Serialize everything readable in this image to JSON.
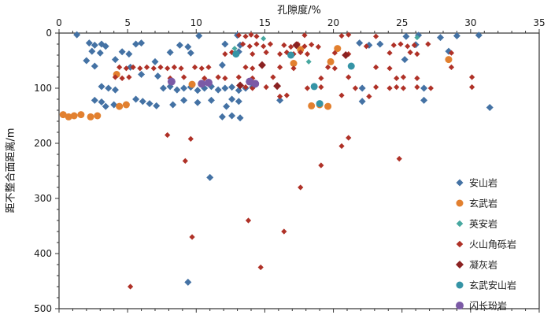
{
  "page": {
    "background": "#ffffff"
  },
  "chart_data": {
    "type": "scatter",
    "title": "",
    "xlabel": "孔隙度/%",
    "ylabel": "距不整合面距离/m",
    "xlim": [
      0,
      35
    ],
    "x_ticks": [
      0,
      5,
      10,
      15,
      20,
      25,
      30,
      35
    ],
    "ylim": [
      0,
      500
    ],
    "y_ticks": [
      0,
      100,
      200,
      300,
      400,
      500
    ],
    "y_inverted": true,
    "x_axis_position": "top",
    "grid": false,
    "legend_position": "right-center",
    "axis_color": "#333333",
    "series": [
      {
        "id": "andesite",
        "name": "安山岩",
        "marker": "diamond",
        "color": "#4472A4",
        "size": 4.5,
        "points": [
          [
            1.3,
            3
          ],
          [
            10.2,
            5
          ],
          [
            13.0,
            4
          ],
          [
            25.3,
            6
          ],
          [
            26.2,
            4
          ],
          [
            27.8,
            8
          ],
          [
            29.0,
            5
          ],
          [
            30.6,
            4
          ],
          [
            2.2,
            18
          ],
          [
            2.6,
            22
          ],
          [
            3.1,
            20
          ],
          [
            3.4,
            24
          ],
          [
            5.6,
            20
          ],
          [
            6.0,
            18
          ],
          [
            8.8,
            22
          ],
          [
            9.4,
            25
          ],
          [
            12.1,
            20
          ],
          [
            13.2,
            22
          ],
          [
            21.9,
            18
          ],
          [
            22.6,
            22
          ],
          [
            23.4,
            20
          ],
          [
            26.0,
            21
          ],
          [
            2.4,
            33
          ],
          [
            3.0,
            36
          ],
          [
            4.6,
            34
          ],
          [
            5.1,
            38
          ],
          [
            8.1,
            35
          ],
          [
            9.6,
            36
          ],
          [
            13.1,
            34
          ],
          [
            28.4,
            33
          ],
          [
            2.0,
            50
          ],
          [
            4.1,
            48
          ],
          [
            7.0,
            52
          ],
          [
            25.2,
            48
          ],
          [
            2.6,
            60
          ],
          [
            5.2,
            62
          ],
          [
            11.9,
            58
          ],
          [
            6.0,
            75
          ],
          [
            7.2,
            78
          ],
          [
            3.1,
            97
          ],
          [
            3.6,
            100
          ],
          [
            4.1,
            103
          ],
          [
            7.6,
            100
          ],
          [
            8.1,
            97
          ],
          [
            8.6,
            103
          ],
          [
            9.1,
            100
          ],
          [
            9.6,
            98
          ],
          [
            10.1,
            104
          ],
          [
            10.6,
            100
          ],
          [
            11.1,
            97
          ],
          [
            11.6,
            103
          ],
          [
            12.1,
            100
          ],
          [
            12.6,
            98
          ],
          [
            13.1,
            104
          ],
          [
            13.6,
            100
          ],
          [
            14.1,
            98
          ],
          [
            22.1,
            100
          ],
          [
            26.6,
            100
          ],
          [
            2.6,
            122
          ],
          [
            3.1,
            125
          ],
          [
            5.6,
            120
          ],
          [
            6.1,
            124
          ],
          [
            6.6,
            128
          ],
          [
            9.1,
            122
          ],
          [
            10.1,
            126
          ],
          [
            11.1,
            122
          ],
          [
            12.6,
            120
          ],
          [
            13.1,
            124
          ],
          [
            16.1,
            122
          ],
          [
            22.1,
            124
          ],
          [
            26.6,
            122
          ],
          [
            3.4,
            133
          ],
          [
            4.0,
            130
          ],
          [
            7.1,
            132
          ],
          [
            8.3,
            130
          ],
          [
            12.2,
            133
          ],
          [
            31.4,
            135
          ],
          [
            11.9,
            152
          ],
          [
            12.6,
            150
          ],
          [
            13.2,
            154
          ],
          [
            11.0,
            262
          ],
          [
            9.4,
            452
          ]
        ]
      },
      {
        "id": "basalt",
        "name": "玄武岩",
        "marker": "circle",
        "color": "#E2802F",
        "size": 4.5,
        "points": [
          [
            0.3,
            148
          ],
          [
            0.7,
            152
          ],
          [
            1.1,
            150
          ],
          [
            1.6,
            148
          ],
          [
            2.3,
            152
          ],
          [
            2.8,
            150
          ],
          [
            4.4,
            133
          ],
          [
            4.9,
            130
          ],
          [
            17.6,
            30
          ],
          [
            20.3,
            28
          ],
          [
            17.1,
            55
          ],
          [
            19.8,
            52
          ],
          [
            28.4,
            48
          ],
          [
            4.2,
            75
          ],
          [
            9.7,
            93
          ],
          [
            18.4,
            132
          ],
          [
            19.0,
            130
          ],
          [
            19.6,
            133
          ]
        ]
      },
      {
        "id": "dacite",
        "name": "英安岩",
        "marker": "diamond",
        "color": "#47A8A0",
        "size": 3.5,
        "points": [
          [
            12.8,
            28
          ],
          [
            14.9,
            10
          ],
          [
            26.1,
            8
          ],
          [
            18.2,
            52
          ]
        ]
      },
      {
        "id": "volcanic-breccia",
        "name": "火山角砾岩",
        "marker": "diamond",
        "color": "#AF3127",
        "size": 3.6,
        "points": [
          [
            13.1,
            4
          ],
          [
            13.6,
            6
          ],
          [
            14.0,
            3
          ],
          [
            14.4,
            6
          ],
          [
            17.9,
            4
          ],
          [
            20.6,
            5
          ],
          [
            21.1,
            3
          ],
          [
            23.1,
            6
          ],
          [
            13.4,
            20
          ],
          [
            13.9,
            24
          ],
          [
            14.4,
            20
          ],
          [
            14.9,
            24
          ],
          [
            15.4,
            20
          ],
          [
            16.4,
            22
          ],
          [
            16.9,
            25
          ],
          [
            17.4,
            20
          ],
          [
            17.9,
            24
          ],
          [
            18.4,
            21
          ],
          [
            18.9,
            25
          ],
          [
            22.4,
            24
          ],
          [
            24.4,
            22
          ],
          [
            24.9,
            20
          ],
          [
            25.4,
            24
          ],
          [
            25.9,
            22
          ],
          [
            26.9,
            20
          ],
          [
            12.1,
            38
          ],
          [
            12.6,
            35
          ],
          [
            14.1,
            38
          ],
          [
            15.1,
            35
          ],
          [
            16.1,
            38
          ],
          [
            16.6,
            35
          ],
          [
            17.1,
            38
          ],
          [
            17.6,
            35
          ],
          [
            18.1,
            38
          ],
          [
            20.1,
            36
          ],
          [
            21.1,
            38
          ],
          [
            24.1,
            36
          ],
          [
            25.6,
            35
          ],
          [
            26.1,
            38
          ],
          [
            28.6,
            36
          ],
          [
            4.4,
            62
          ],
          [
            4.9,
            64
          ],
          [
            5.4,
            62
          ],
          [
            5.9,
            64
          ],
          [
            6.4,
            62
          ],
          [
            6.9,
            64
          ],
          [
            7.4,
            62
          ],
          [
            7.9,
            64
          ],
          [
            8.4,
            62
          ],
          [
            8.9,
            64
          ],
          [
            9.9,
            62
          ],
          [
            10.4,
            64
          ],
          [
            10.9,
            62
          ],
          [
            13.6,
            62
          ],
          [
            14.1,
            64
          ],
          [
            16.1,
            62
          ],
          [
            17.1,
            64
          ],
          [
            19.6,
            62
          ],
          [
            20.1,
            64
          ],
          [
            23.1,
            62
          ],
          [
            24.1,
            64
          ],
          [
            28.6,
            62
          ],
          [
            4.1,
            80
          ],
          [
            4.6,
            82
          ],
          [
            5.1,
            80
          ],
          [
            8.1,
            82
          ],
          [
            9.1,
            80
          ],
          [
            10.6,
            82
          ],
          [
            11.6,
            80
          ],
          [
            12.1,
            82
          ],
          [
            13.1,
            80
          ],
          [
            14.1,
            82
          ],
          [
            15.6,
            80
          ],
          [
            19.1,
            82
          ],
          [
            21.1,
            80
          ],
          [
            24.6,
            82
          ],
          [
            25.1,
            80
          ],
          [
            26.1,
            82
          ],
          [
            30.1,
            80
          ],
          [
            13.6,
            98
          ],
          [
            14.1,
            100
          ],
          [
            15.1,
            98
          ],
          [
            18.1,
            100
          ],
          [
            19.1,
            98
          ],
          [
            21.6,
            100
          ],
          [
            23.1,
            98
          ],
          [
            24.1,
            100
          ],
          [
            24.6,
            98
          ],
          [
            25.1,
            100
          ],
          [
            26.1,
            98
          ],
          [
            27.1,
            100
          ],
          [
            30.1,
            98
          ],
          [
            16.1,
            115
          ],
          [
            16.6,
            113
          ],
          [
            20.6,
            113
          ],
          [
            22.6,
            115
          ],
          [
            7.9,
            185
          ],
          [
            9.6,
            192
          ],
          [
            21.1,
            190
          ],
          [
            20.6,
            205
          ],
          [
            9.2,
            232
          ],
          [
            24.8,
            228
          ],
          [
            19.1,
            240
          ],
          [
            17.6,
            280
          ],
          [
            13.8,
            340
          ],
          [
            16.4,
            360
          ],
          [
            9.7,
            370
          ],
          [
            14.7,
            425
          ],
          [
            5.2,
            460
          ]
        ]
      },
      {
        "id": "tuff",
        "name": "凝灰岩",
        "marker": "diamond",
        "color": "#8B2222",
        "size": 5,
        "points": [
          [
            14.8,
            58
          ],
          [
            17.3,
            22
          ],
          [
            13.2,
            95
          ],
          [
            20.9,
            40
          ],
          [
            15.9,
            96
          ]
        ]
      },
      {
        "id": "basaltic-andesite",
        "name": "玄武安山岩",
        "marker": "circle",
        "color": "#3594A6",
        "size": 4.5,
        "points": [
          [
            12.9,
            38
          ],
          [
            16.9,
            40
          ],
          [
            18.6,
            97
          ],
          [
            21.3,
            60
          ],
          [
            19.0,
            128
          ]
        ]
      },
      {
        "id": "diorite-porphyrite",
        "name": "闪长玢岩",
        "marker": "circle",
        "color": "#7B5AA6",
        "size": 5,
        "points": [
          [
            8.2,
            88
          ],
          [
            10.4,
            92
          ],
          [
            10.9,
            90
          ],
          [
            13.9,
            88
          ],
          [
            14.3,
            92
          ]
        ]
      }
    ]
  }
}
